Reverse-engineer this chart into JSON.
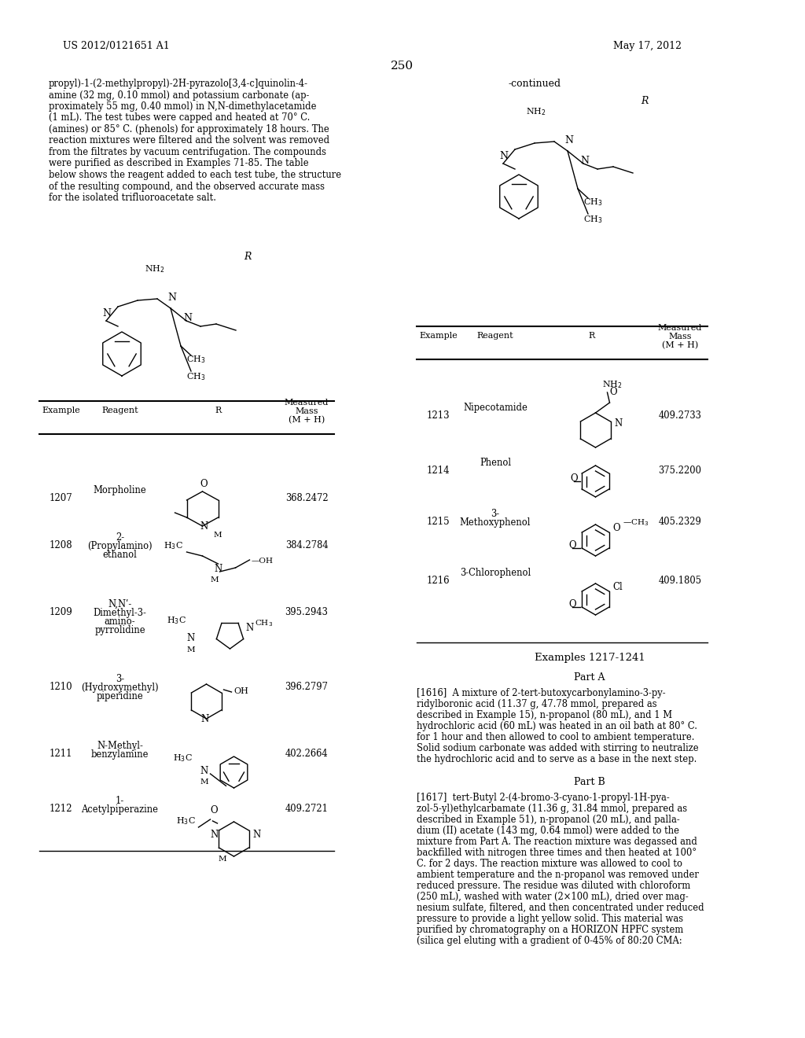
{
  "page_number": "250",
  "patent_number": "US 2012/0121651 A1",
  "patent_date": "May 17, 2012",
  "background_color": "#ffffff",
  "text_color": "#000000",
  "font_size_body": 8.5,
  "font_size_header": 9,
  "font_size_small": 7.5,
  "left_text": "propyl)-1-(2-methylpropyl)-2H-pyrazolo[3,4-c]quinolin-4-\namine (32 mg, 0.10 mmol) and potassium carbonate (ap-\nproximately 55 mg, 0.40 mmol) in N,N-dimethylacetamide\n(1 mL). The test tubes were capped and heated at 70° C.\n(amines) or 85° C. (phenols) for approximately 18 hours. The\nreaction mixtures were filtered and the solvent was removed\nfrom the filtrates by vacuum centrifugation. The compounds\nwere purified as described in Examples 71-85. The table\nbelow shows the reagent added to each test tube, the structure\nof the resulting compound, and the observed accurate mass\nfor the isolated trifluoroacetate salt.",
  "right_continued": "-continued",
  "table_left_headers": [
    "Example",
    "Reagent",
    "R",
    "Measured\nMass\n(M + H)"
  ],
  "table_left_rows": [
    [
      "1207",
      "Morpholine",
      "",
      "368.2472"
    ],
    [
      "1208",
      "2-\n(Propylamino)\nethanol",
      "",
      "384.2784"
    ],
    [
      "1209",
      "N,Nʹ-\nDimethyl-3-\namino-\npyrrolidine",
      "",
      "395.2943"
    ],
    [
      "1210",
      "3-\n(Hydroxymethyl)\npiperidine",
      "",
      "396.2797"
    ],
    [
      "1211",
      "N-Methyl-\nbenzylamine",
      "",
      "402.2664"
    ],
    [
      "1212",
      "1-\nAcetylpiperazine",
      "",
      "409.2721"
    ]
  ],
  "table_right_headers": [
    "Example",
    "Reagent",
    "R",
    "Measured\nMass\n(M + H)"
  ],
  "table_right_rows": [
    [
      "1213",
      "Nipecotamide",
      "",
      "409.2733"
    ],
    [
      "1214",
      "Phenol",
      "",
      "375.2200"
    ],
    [
      "1215",
      "3-\nMethoxyphenol",
      "",
      "405.2329"
    ],
    [
      "1216",
      "3-Chlorophenol",
      "",
      "409.1805"
    ]
  ],
  "examples_section": "Examples 1217-1241",
  "part_a": "Part A",
  "part_b": "Part B",
  "paragraph_1616": "[1616]  A mixture of 2-tert-butoxycarbonylamino-3-py-\nridylboronic acid (11.37 g, 47.78 mmol, prepared as\ndescribed in Example 15), n-propanol (80 mL), and 1 M\nhydrochloric acid (60 mL) was heated in an oil bath at 80° C.\nfor 1 hour and then allowed to cool to ambient temperature.\nSolid sodium carbonate was added with stirring to neutralize\nthe hydrochloric acid and to serve as a base in the next step.",
  "paragraph_1617": "[1617]  tert-Butyl 2-(4-bromo-3-cyano-1-propyl-1H-pya-\nzol-5-yl)ethylcarbamate (11.36 g, 31.84 mmol, prepared as\ndescribed in Example 51), n-propanol (20 mL), and palla-\ndium (II) acetate (143 mg, 0.64 mmol) were added to the\nmixture from Part A. The reaction mixture was degassed and\nbackfilled with nitrogen three times and then heated at 100°\nC. for 2 days. The reaction mixture was allowed to cool to\nambient temperature and the n-propanol was removed under\nreduced pressure. The residue was diluted with chloroform\n(250 mL), washed with water (2×100 mL), dried over mag-\nnesium sulfate, filtered, and then concentrated under reduced\npressure to provide a light yellow solid. This material was\npurified by chromatography on a HORIZON HPFC system\n(silica gel eluting with a gradient of 0-45% of 80:20 CMA:"
}
